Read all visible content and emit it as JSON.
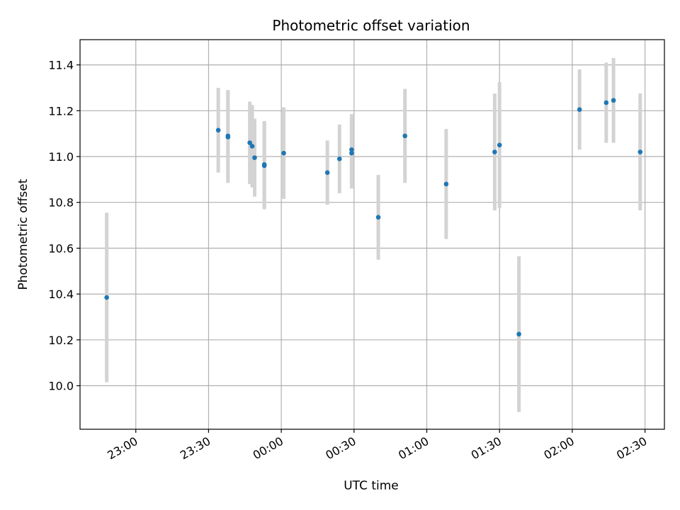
{
  "chart_data": {
    "type": "scatter",
    "title": "Photometric offset variation",
    "xlabel": "UTC time",
    "ylabel": "Photometric offset",
    "x_unit": "UTC time (HH:MM)",
    "xlim": [
      "22:37",
      "02:38"
    ],
    "ylim": [
      9.81,
      11.51
    ],
    "grid": true,
    "x_ticks": [
      "23:00",
      "23:30",
      "00:00",
      "00:30",
      "01:00",
      "01:30",
      "02:00",
      "02:30"
    ],
    "y_ticks": [
      10.0,
      10.2,
      10.4,
      10.6,
      10.8,
      11.0,
      11.2,
      11.4
    ],
    "colors": {
      "point": "#1f77b4",
      "errorbar": "#d3d3d3",
      "grid": "#b0b0b0"
    },
    "points": [
      {
        "time": "22:48",
        "y": 10.385,
        "err": 0.37
      },
      {
        "time": "23:34",
        "y": 11.115,
        "err": 0.185
      },
      {
        "time": "23:38",
        "y": 11.09,
        "err": 0.2
      },
      {
        "time": "23:38",
        "y": 11.085,
        "err": 0.2
      },
      {
        "time": "23:47",
        "y": 11.06,
        "err": 0.18
      },
      {
        "time": "23:48",
        "y": 11.045,
        "err": 0.18
      },
      {
        "time": "23:49",
        "y": 10.995,
        "err": 0.17
      },
      {
        "time": "23:53",
        "y": 10.965,
        "err": 0.19
      },
      {
        "time": "23:53",
        "y": 10.96,
        "err": 0.19
      },
      {
        "time": "00:01",
        "y": 11.015,
        "err": 0.2
      },
      {
        "time": "00:19",
        "y": 10.93,
        "err": 0.14
      },
      {
        "time": "00:24",
        "y": 10.99,
        "err": 0.15
      },
      {
        "time": "00:29",
        "y": 11.03,
        "err": 0.155
      },
      {
        "time": "00:29",
        "y": 11.015,
        "err": 0.155
      },
      {
        "time": "00:40",
        "y": 10.735,
        "err": 0.185
      },
      {
        "time": "00:51",
        "y": 11.09,
        "err": 0.205
      },
      {
        "time": "01:08",
        "y": 10.88,
        "err": 0.24
      },
      {
        "time": "01:28",
        "y": 11.02,
        "err": 0.255
      },
      {
        "time": "01:30",
        "y": 11.05,
        "err": 0.275
      },
      {
        "time": "01:38",
        "y": 10.225,
        "err": 0.34
      },
      {
        "time": "02:03",
        "y": 11.205,
        "err": 0.175
      },
      {
        "time": "02:14",
        "y": 11.235,
        "err": 0.175
      },
      {
        "time": "02:17",
        "y": 11.245,
        "err": 0.185
      },
      {
        "time": "02:28",
        "y": 11.02,
        "err": 0.255
      }
    ]
  }
}
